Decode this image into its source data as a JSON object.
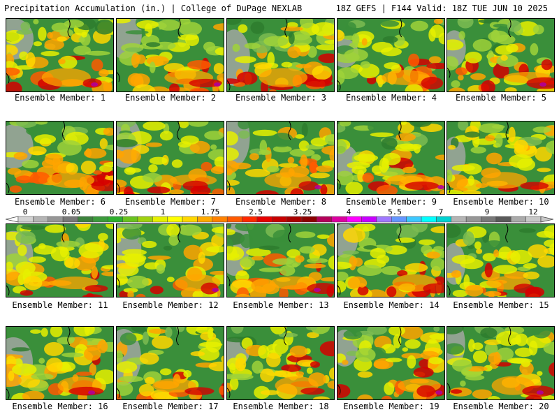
{
  "header": {
    "title_left": "Precipitation Accumulation (in.) | College of DuPage NEXLAB",
    "title_right": "18Z GEFS | F144 Valid: 18Z TUE JUN 10 2025"
  },
  "colorbar": {
    "tick_labels": [
      "0",
      "0.05",
      "0.25",
      "1",
      "1.75",
      "2.5",
      "3.25",
      "4",
      "5.5",
      "7",
      "9",
      "12"
    ],
    "colors": [
      "#d2d2d2",
      "#b4b4b4",
      "#969696",
      "#787878",
      "#3c823c",
      "#3c9b3c",
      "#2daf2d",
      "#69c31e",
      "#a0d20f",
      "#e6f000",
      "#ffff00",
      "#ffd700",
      "#ffaa00",
      "#ff8200",
      "#ff5a00",
      "#ff2800",
      "#e60000",
      "#c80000",
      "#aa0000",
      "#8c0000",
      "#b4005a",
      "#dc00a0",
      "#ff00ff",
      "#c800ff",
      "#a078ff",
      "#6496ff",
      "#3cc8ff",
      "#00ffff",
      "#00d2d2",
      "#b4b4b4",
      "#969696",
      "#787878",
      "#5a5a5a",
      "#aaaaaa",
      "#c8c8c8"
    ]
  },
  "members": [
    {
      "label": "Ensemble Member: 1"
    },
    {
      "label": "Ensemble Member: 2"
    },
    {
      "label": "Ensemble Member: 3"
    },
    {
      "label": "Ensemble Member: 4"
    },
    {
      "label": "Ensemble Member: 5"
    },
    {
      "label": "Ensemble Member: 6"
    },
    {
      "label": "Ensemble Member: 7"
    },
    {
      "label": "Ensemble Member: 8"
    },
    {
      "label": "Ensemble Member: 9"
    },
    {
      "label": "Ensemble Member: 10"
    },
    {
      "label": "Ensemble Member: 11"
    },
    {
      "label": "Ensemble Member: 12"
    },
    {
      "label": "Ensemble Member: 13"
    },
    {
      "label": "Ensemble Member: 14"
    },
    {
      "label": "Ensemble Member: 15"
    },
    {
      "label": "Ensemble Member: 16"
    },
    {
      "label": "Ensemble Member: 17"
    },
    {
      "label": "Ensemble Member: 18"
    },
    {
      "label": "Ensemble Member: 19"
    },
    {
      "label": "Ensemble Member: 20"
    }
  ]
}
